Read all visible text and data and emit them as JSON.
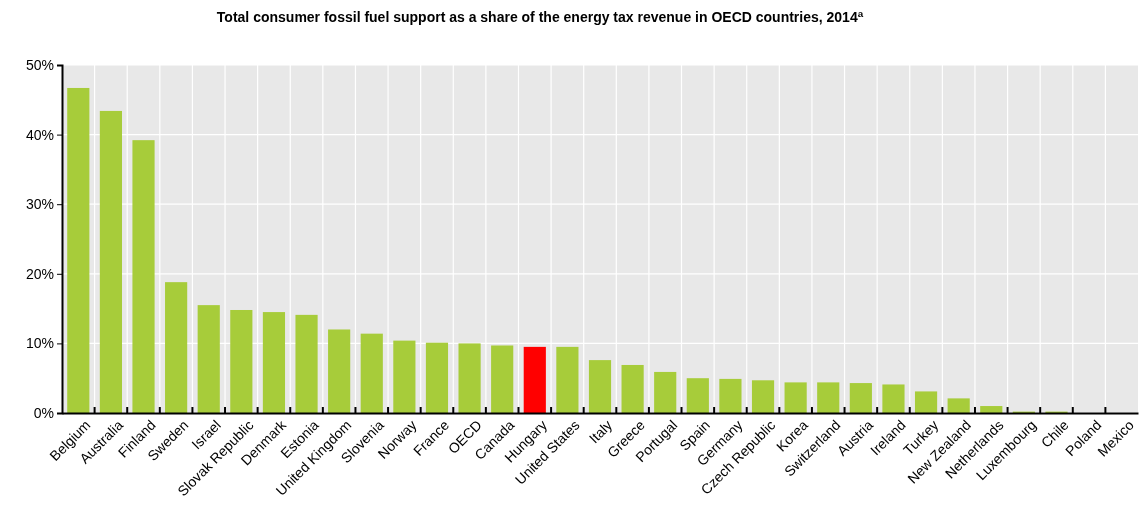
{
  "chart_data": {
    "type": "bar",
    "title": "Total consumer fossil fuel support as a share of the energy tax revenue in OECD countries, 2014$^{a}$",
    "categories": [
      "Belgium",
      "Australia",
      "Finland",
      "Sweden",
      "Israel",
      "Slovak Republic",
      "Denmark",
      "Estonia",
      "United Kingdom",
      "Slovenia",
      "Norway",
      "France",
      "OECD",
      "Canada",
      "Hungary",
      "United States",
      "Italy",
      "Greece",
      "Portugal",
      "Spain",
      "Germany",
      "Czech Republic",
      "Korea",
      "Switzerland",
      "Austria",
      "Ireland",
      "Turkey",
      "New Zealand",
      "Netherlands",
      "Luxembourg",
      "Chile",
      "Poland",
      "Mexico"
    ],
    "values": [
      46.7,
      43.4,
      39.2,
      18.8,
      15.5,
      14.8,
      14.5,
      14.1,
      12.0,
      11.4,
      10.4,
      10.1,
      10.0,
      9.7,
      9.5,
      9.5,
      7.6,
      6.9,
      5.9,
      5.0,
      4.9,
      4.7,
      4.4,
      4.4,
      4.3,
      4.1,
      3.1,
      2.1,
      1.0,
      0.2,
      0.2,
      0,
      0
    ],
    "colors": [
      "#a7cc3a",
      "#a7cc3a",
      "#a7cc3a",
      "#a7cc3a",
      "#a7cc3a",
      "#a7cc3a",
      "#a7cc3a",
      "#a7cc3a",
      "#a7cc3a",
      "#a7cc3a",
      "#a7cc3a",
      "#a7cc3a",
      "#a7cc3a",
      "#a7cc3a",
      "#ff0000",
      "#a7cc3a",
      "#a7cc3a",
      "#a7cc3a",
      "#a7cc3a",
      "#a7cc3a",
      "#a7cc3a",
      "#a7cc3a",
      "#a7cc3a",
      "#a7cc3a",
      "#a7cc3a",
      "#a7cc3a",
      "#a7cc3a",
      "#a7cc3a",
      "#a7cc3a",
      "#a7cc3a",
      "#a7cc3a",
      "#a7cc3a",
      "#a7cc3a"
    ],
    "ylim": [
      0,
      50
    ],
    "yticks": [
      {
        "value": 0,
        "label": "0%"
      },
      {
        "value": 10,
        "label": "10%"
      },
      {
        "value": 20,
        "label": "20%"
      },
      {
        "value": 30,
        "label": "30%"
      },
      {
        "value": 40,
        "label": "40%"
      },
      {
        "value": 50,
        "label": "50%"
      }
    ],
    "grid": true
  }
}
